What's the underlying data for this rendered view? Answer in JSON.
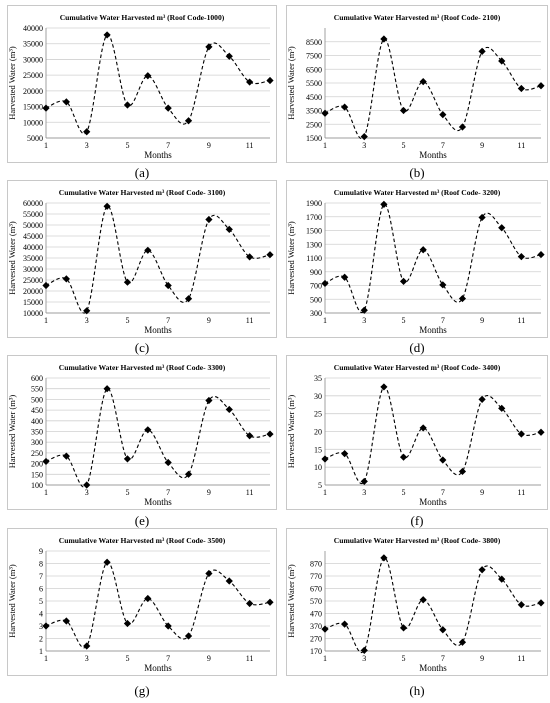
{
  "charts": [
    {
      "caption": "(a)",
      "title": "Cumulative Water Harvested m³ (Roof Code-1000)"
    },
    {
      "caption": "(b)",
      "title": "Cumulative Water Harvested m³ (Roof Code- 2100)"
    },
    {
      "caption": "(c)",
      "title": "Cumulative Water Harvested m³ (Roof Code- 3100)"
    },
    {
      "caption": "(d)",
      "title": "Cumulative Water Harvested m³ (Roof Code- 3200)"
    },
    {
      "caption": "(e)",
      "title": "Cumulative Water Harvested m³ (Roof Code- 3300)"
    },
    {
      "caption": "(f)",
      "title": "Cumulative Water Harvested m³ (Roof Code- 3400)"
    },
    {
      "caption": "(g)",
      "title": "Cumulative Water Harvested m³ (Roof Code- 3500)"
    },
    {
      "caption": "(h)",
      "title": "Cumulative Water Harvested m³ (Roof Code- 3800)"
    }
  ],
  "chart_data": [
    {
      "type": "line",
      "title": "Cumulative Water Harvested m³ (Roof Code-1000)",
      "xlabel": "Months",
      "ylabel": "Harvested Water (m³)",
      "x": [
        1,
        2,
        3,
        4,
        5,
        6,
        7,
        8,
        9,
        10,
        11,
        12
      ],
      "y": [
        14500,
        16500,
        7000,
        37800,
        15500,
        24800,
        14500,
        10500,
        34000,
        31000,
        22800,
        23300
      ],
      "xticks": [
        1,
        3,
        5,
        7,
        9,
        11
      ],
      "ylim": [
        5000,
        40000
      ],
      "yticks": [
        5000,
        10000,
        15000,
        20000,
        25000,
        30000,
        35000,
        40000
      ],
      "grid": "horizontal",
      "line_style": "dashed smooth",
      "marker": "diamond"
    },
    {
      "type": "line",
      "title": "Cumulative Water Harvested m³ (Roof Code- 2100)",
      "xlabel": "Months",
      "ylabel": "Harvested Water (m³)",
      "x": [
        1,
        2,
        3,
        4,
        5,
        6,
        7,
        8,
        9,
        10,
        11,
        12
      ],
      "y": [
        3300,
        3750,
        1600,
        8700,
        3500,
        5600,
        3200,
        2300,
        7800,
        7100,
        5100,
        5300
      ],
      "xticks": [
        1,
        3,
        5,
        7,
        9,
        11
      ],
      "ylim": [
        1500,
        9500
      ],
      "yticks": [
        1500,
        2500,
        3500,
        4500,
        5500,
        6500,
        7500,
        8500
      ],
      "grid": "horizontal",
      "line_style": "dashed smooth",
      "marker": "diamond"
    },
    {
      "type": "line",
      "title": "Cumulative Water Harvested m³ (Roof Code- 3100)",
      "xlabel": "Months",
      "ylabel": "Harvested Water (m³)",
      "x": [
        1,
        2,
        3,
        4,
        5,
        6,
        7,
        8,
        9,
        10,
        11,
        12
      ],
      "y": [
        22500,
        25500,
        11000,
        58500,
        24000,
        38500,
        22500,
        16500,
        52500,
        48000,
        35500,
        36500
      ],
      "xticks": [
        1,
        3,
        5,
        7,
        9,
        11
      ],
      "ylim": [
        10000,
        60000
      ],
      "yticks": [
        10000,
        15000,
        20000,
        25000,
        30000,
        35000,
        40000,
        45000,
        50000,
        55000,
        60000
      ],
      "grid": "horizontal",
      "line_style": "dashed smooth",
      "marker": "diamond"
    },
    {
      "type": "line",
      "title": "Cumulative Water Harvested m³ (Roof Code- 3200)",
      "xlabel": "Months",
      "ylabel": "Harvested Water (m³)",
      "x": [
        1,
        2,
        3,
        4,
        5,
        6,
        7,
        8,
        9,
        10,
        11,
        12
      ],
      "y": [
        730,
        820,
        340,
        1880,
        760,
        1220,
        710,
        510,
        1690,
        1540,
        1120,
        1150
      ],
      "xticks": [
        1,
        3,
        5,
        7,
        9,
        11
      ],
      "ylim": [
        300,
        1900
      ],
      "yticks": [
        300,
        500,
        700,
        900,
        1100,
        1300,
        1500,
        1700,
        1900
      ],
      "grid": "horizontal",
      "line_style": "dashed smooth",
      "marker": "diamond"
    },
    {
      "type": "line",
      "title": "Cumulative Water Harvested m³ (Roof Code- 3300)",
      "xlabel": "Months",
      "ylabel": "Harvested Water (m³)",
      "x": [
        1,
        2,
        3,
        4,
        5,
        6,
        7,
        8,
        9,
        10,
        11,
        12
      ],
      "y": [
        210,
        235,
        100,
        550,
        222,
        358,
        205,
        150,
        495,
        453,
        330,
        338
      ],
      "xticks": [
        1,
        3,
        5,
        7,
        9,
        11
      ],
      "ylim": [
        100,
        600
      ],
      "yticks": [
        100,
        150,
        200,
        250,
        300,
        350,
        400,
        450,
        500,
        550,
        600
      ],
      "grid": "horizontal",
      "line_style": "dashed smooth",
      "marker": "diamond"
    },
    {
      "type": "line",
      "title": "Cumulative Water Harvested m³ (Roof Code- 3400)",
      "xlabel": "Months",
      "ylabel": "Harvested Water (m³)",
      "x": [
        1,
        2,
        3,
        4,
        5,
        6,
        7,
        8,
        9,
        10,
        11,
        12
      ],
      "y": [
        12.3,
        13.8,
        6.0,
        32.5,
        12.8,
        21.0,
        12.0,
        8.8,
        29.0,
        26.5,
        19.3,
        19.8
      ],
      "xticks": [
        1,
        3,
        5,
        7,
        9,
        11
      ],
      "ylim": [
        5,
        35
      ],
      "yticks": [
        5,
        10,
        15,
        20,
        25,
        30,
        35
      ],
      "grid": "horizontal",
      "line_style": "dashed smooth",
      "marker": "diamond"
    },
    {
      "type": "line",
      "title": "Cumulative Water Harvested m³ (Roof Code- 3500)",
      "xlabel": "Months",
      "ylabel": "Harvested Water (m³)",
      "x": [
        1,
        2,
        3,
        4,
        5,
        6,
        7,
        8,
        9,
        10,
        11,
        12
      ],
      "y": [
        3.0,
        3.4,
        1.4,
        8.1,
        3.2,
        5.2,
        3.0,
        2.2,
        7.2,
        6.6,
        4.8,
        4.9
      ],
      "xticks": [
        1,
        3,
        5,
        7,
        9,
        11
      ],
      "ylim": [
        1,
        9
      ],
      "yticks": [
        1,
        2,
        3,
        4,
        5,
        6,
        7,
        8,
        9
      ],
      "grid": "horizontal",
      "line_style": "dashed smooth",
      "marker": "diamond"
    },
    {
      "type": "line",
      "title": "Cumulative Water Harvested m³ (Roof Code- 3800)",
      "xlabel": "Months",
      "ylabel": "Harvested Water (m³)",
      "x": [
        1,
        2,
        3,
        4,
        5,
        6,
        7,
        8,
        9,
        10,
        11,
        12
      ],
      "y": [
        345,
        385,
        175,
        915,
        355,
        580,
        340,
        240,
        820,
        745,
        540,
        555
      ],
      "xticks": [
        1,
        3,
        5,
        7,
        9,
        11
      ],
      "ylim": [
        170,
        970
      ],
      "yticks": [
        170,
        270,
        370,
        470,
        570,
        670,
        770,
        870
      ],
      "grid": "horizontal",
      "line_style": "dashed smooth",
      "marker": "diamond"
    }
  ]
}
